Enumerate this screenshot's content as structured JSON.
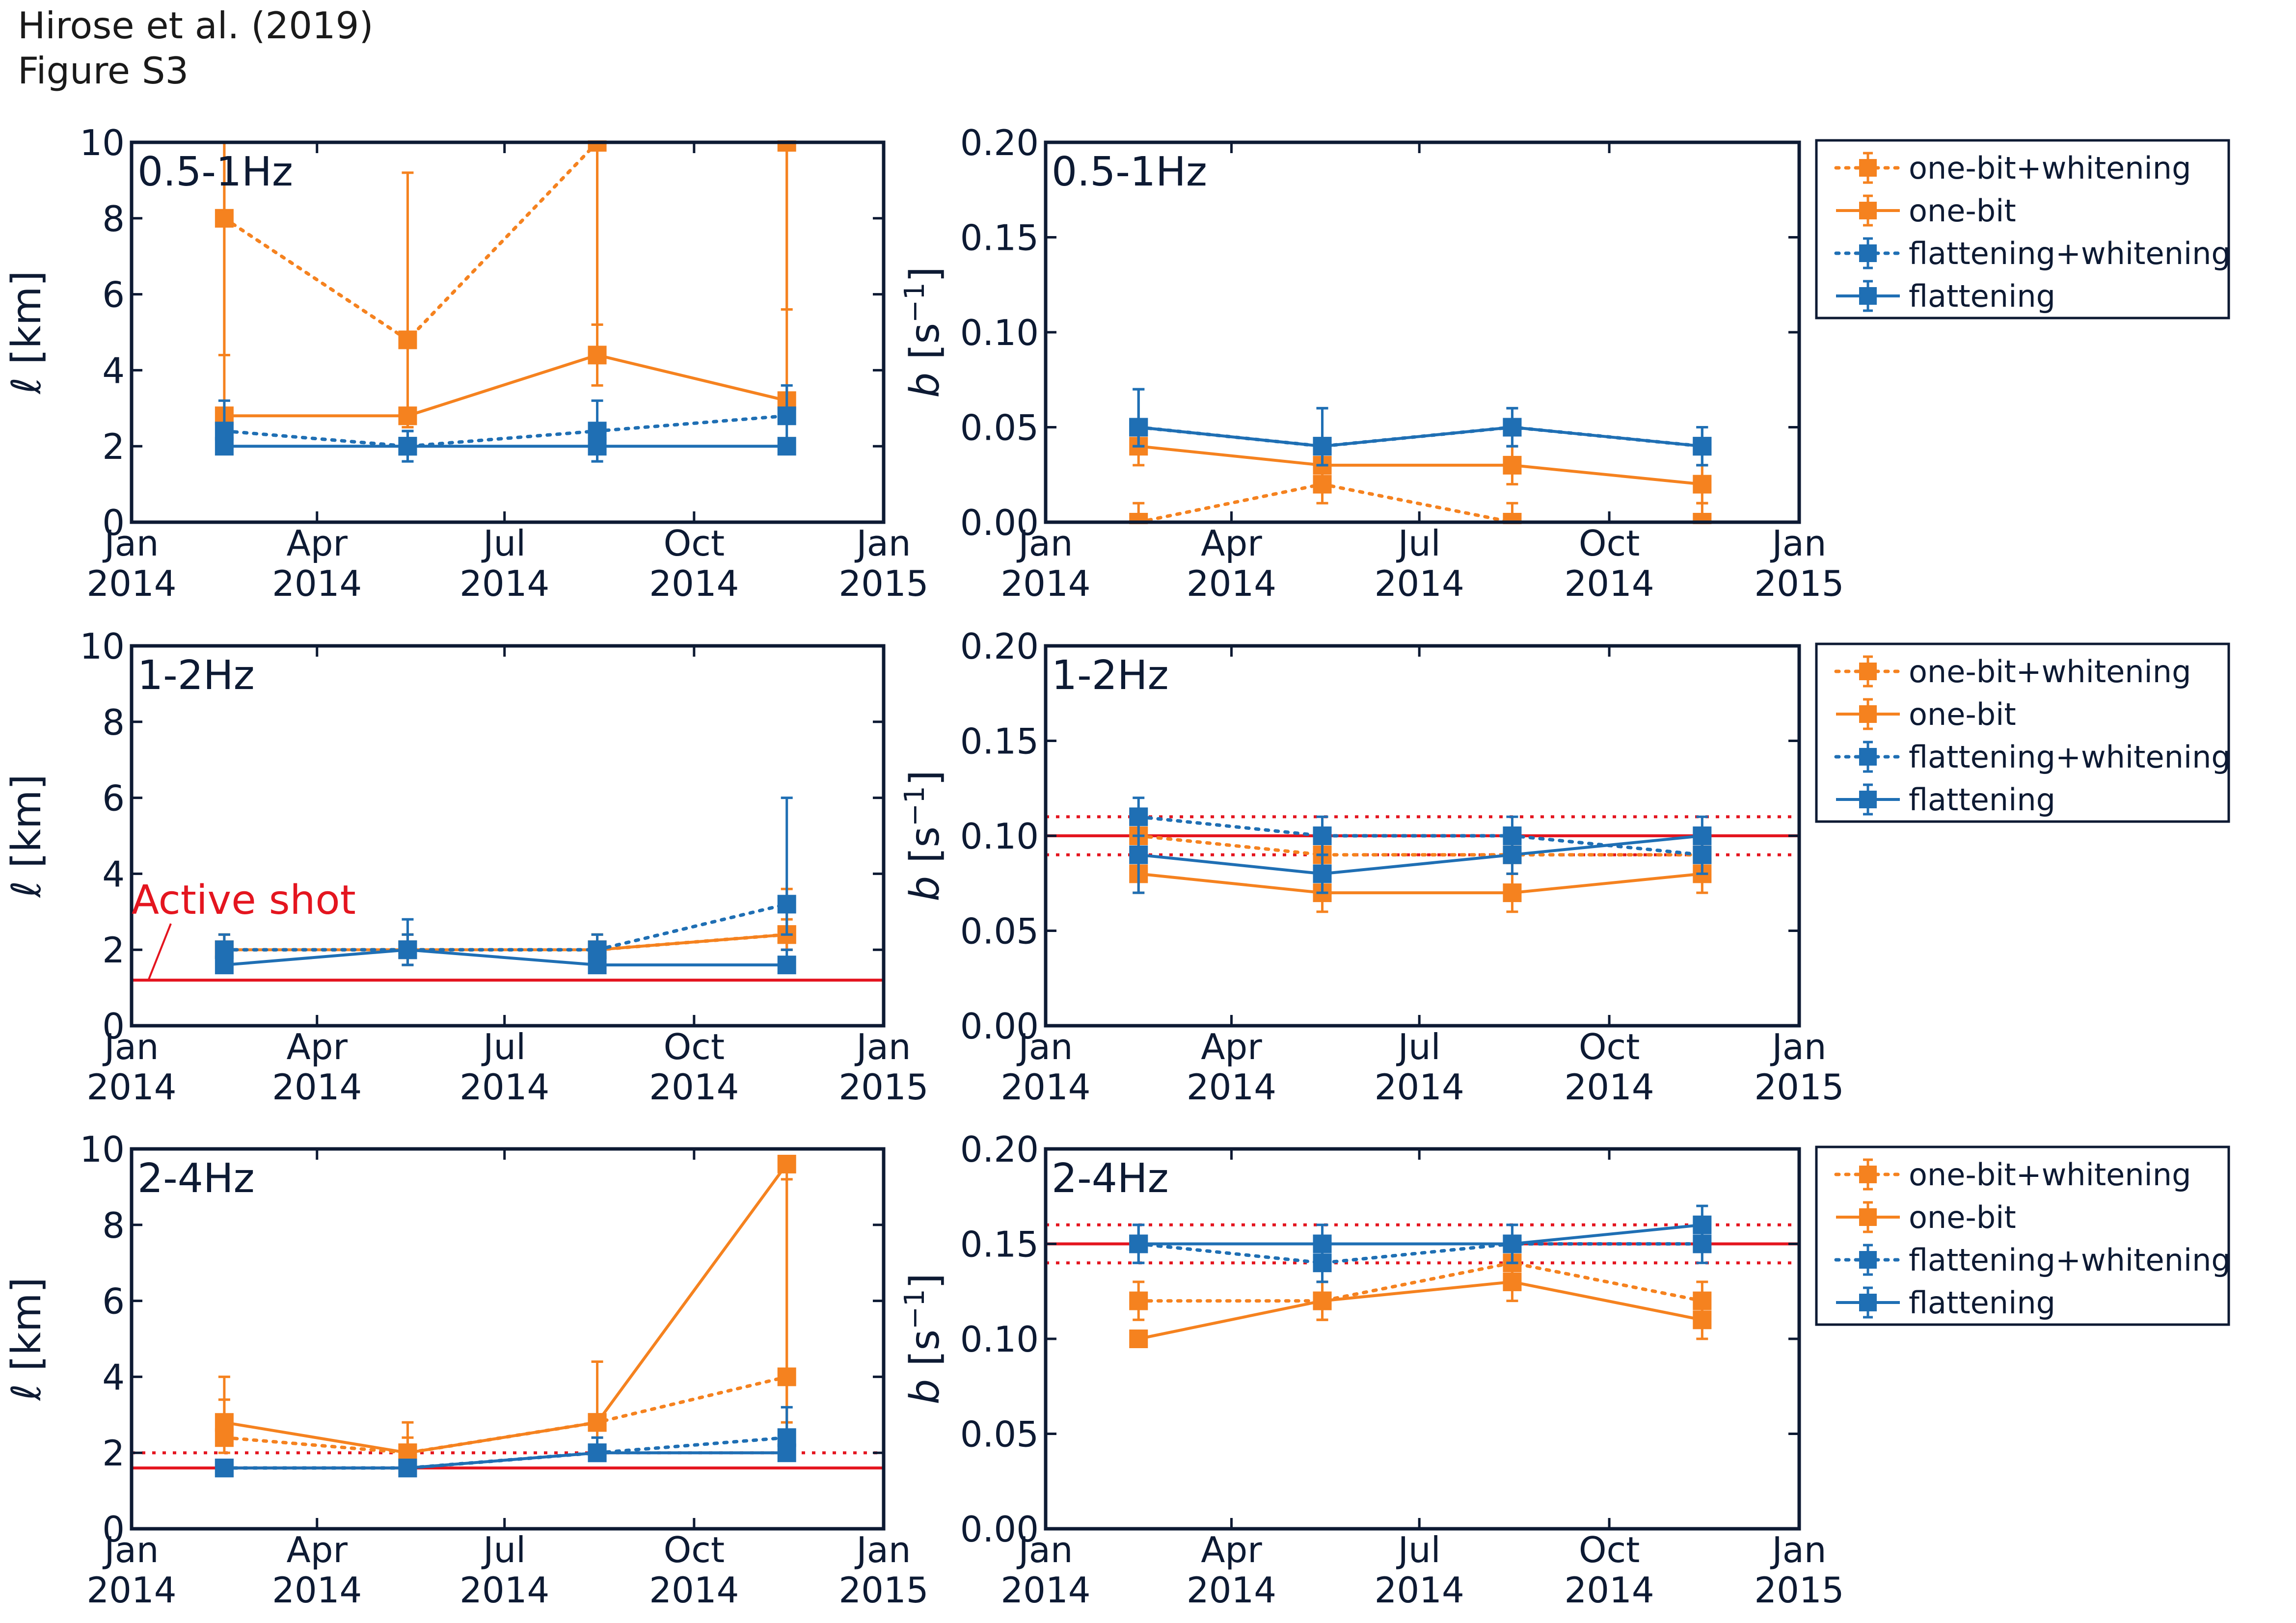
{
  "header": {
    "line1": "Hirose et al. (2019)",
    "line2": "Figure S3"
  },
  "colors": {
    "orange": "#F5821F",
    "blue": "#1F6FB4",
    "red": "#E4151F",
    "frame": "#0d1a33",
    "text": "#0d1a33"
  },
  "chart_data": [
    {
      "type": "line",
      "panel_label": "0.5-1Hz",
      "ylabel": "ℓ [km]",
      "ylim": [
        0,
        10
      ],
      "yticks": [
        "0",
        "2",
        "4",
        "6",
        "8",
        "10"
      ],
      "xticks": [
        [
          "Jan",
          "2014"
        ],
        [
          "Apr",
          "2014"
        ],
        [
          "Jul",
          "2014"
        ],
        [
          "Oct",
          "2014"
        ],
        [
          "Jan",
          "2015"
        ]
      ],
      "x": [
        "2014-02-15",
        "2014-05-15",
        "2014-08-15",
        "2014-11-15"
      ],
      "series": [
        {
          "name": "one-bit+whitening",
          "style": "dotted",
          "color": "orange",
          "values": [
            8.0,
            4.8,
            10.0,
            10.0
          ],
          "err_lo": [
            4.4,
            2.5,
            5.2,
            5.6
          ],
          "err_hi": [
            10.0,
            9.2,
            10.0,
            10.0
          ]
        },
        {
          "name": "one-bit",
          "style": "solid",
          "color": "orange",
          "values": [
            2.8,
            2.8,
            4.4,
            3.2
          ],
          "err_lo": [
            2.5,
            2.5,
            3.6,
            2.6
          ],
          "err_hi": [
            10.0,
            3.0,
            10.0,
            10.0
          ]
        },
        {
          "name": "flattening+whitening",
          "style": "dotted",
          "color": "blue",
          "values": [
            2.4,
            2.0,
            2.4,
            2.8
          ],
          "err_lo": [
            1.8,
            1.6,
            1.6,
            2.2
          ],
          "err_hi": [
            3.2,
            2.4,
            3.2,
            3.6
          ]
        },
        {
          "name": "flattening",
          "style": "solid",
          "color": "blue",
          "values": [
            2.0,
            2.0,
            2.0,
            2.0
          ],
          "err_lo": [
            1.8,
            1.6,
            1.6,
            1.8
          ],
          "err_hi": [
            2.2,
            2.4,
            2.4,
            2.2
          ]
        }
      ]
    },
    {
      "type": "line",
      "panel_label": "0.5-1Hz",
      "ylabel": "b [s⁻¹]",
      "ylim": [
        0,
        0.2
      ],
      "yticks": [
        "0.00",
        "0.05",
        "0.10",
        "0.15",
        "0.20"
      ],
      "xticks": [
        [
          "Jan",
          "2014"
        ],
        [
          "Apr",
          "2014"
        ],
        [
          "Jul",
          "2014"
        ],
        [
          "Oct",
          "2014"
        ],
        [
          "Jan",
          "2015"
        ]
      ],
      "x": [
        "2014-02-15",
        "2014-05-15",
        "2014-08-15",
        "2014-11-15"
      ],
      "legend": "outside-right",
      "series": [
        {
          "name": "one-bit+whitening",
          "style": "dotted",
          "color": "orange",
          "values": [
            0.0,
            0.02,
            0.0,
            0.0
          ],
          "err_lo": [
            0.0,
            0.01,
            0.0,
            0.0
          ],
          "err_hi": [
            0.01,
            0.03,
            0.01,
            0.01
          ]
        },
        {
          "name": "one-bit",
          "style": "solid",
          "color": "orange",
          "values": [
            0.04,
            0.03,
            0.03,
            0.02
          ],
          "err_lo": [
            0.03,
            0.02,
            0.02,
            0.01
          ],
          "err_hi": [
            0.05,
            0.04,
            0.04,
            0.03
          ]
        },
        {
          "name": "flattening+whitening",
          "style": "dotted",
          "color": "blue",
          "values": [
            0.05,
            0.04,
            0.05,
            0.04
          ],
          "err_lo": [
            0.04,
            0.03,
            0.04,
            0.03
          ],
          "err_hi": [
            0.07,
            0.06,
            0.06,
            0.05
          ]
        },
        {
          "name": "flattening",
          "style": "solid",
          "color": "blue",
          "values": [
            0.05,
            0.04,
            0.05,
            0.04
          ],
          "err_lo": [
            0.04,
            0.03,
            0.04,
            0.03
          ],
          "err_hi": [
            0.07,
            0.06,
            0.06,
            0.05
          ]
        }
      ]
    },
    {
      "type": "line",
      "panel_label": "1-2Hz",
      "ylabel": "ℓ [km]",
      "ylim": [
        0,
        10
      ],
      "yticks": [
        "0",
        "2",
        "4",
        "6",
        "8",
        "10"
      ],
      "xticks": [
        [
          "Jan",
          "2014"
        ],
        [
          "Apr",
          "2014"
        ],
        [
          "Jul",
          "2014"
        ],
        [
          "Oct",
          "2014"
        ],
        [
          "Jan",
          "2015"
        ]
      ],
      "x": [
        "2014-02-15",
        "2014-05-15",
        "2014-08-15",
        "2014-11-15"
      ],
      "annotation": "Active shot",
      "reference": {
        "value": 1.2,
        "lower": null,
        "upper": null
      },
      "series": [
        {
          "name": "one-bit+whitening",
          "style": "dotted",
          "color": "orange",
          "values": [
            2.0,
            2.0,
            2.0,
            2.4
          ],
          "err_lo": [
            1.6,
            1.6,
            1.6,
            2.0
          ],
          "err_hi": [
            2.4,
            2.4,
            2.4,
            3.6
          ]
        },
        {
          "name": "one-bit",
          "style": "solid",
          "color": "orange",
          "values": [
            2.0,
            2.0,
            2.0,
            2.4
          ],
          "err_lo": [
            1.6,
            1.6,
            1.6,
            2.0
          ],
          "err_hi": [
            2.4,
            2.4,
            2.4,
            2.8
          ]
        },
        {
          "name": "flattening+whitening",
          "style": "dotted",
          "color": "blue",
          "values": [
            2.0,
            2.0,
            2.0,
            3.2
          ],
          "err_lo": [
            1.6,
            1.6,
            1.6,
            2.4
          ],
          "err_hi": [
            2.4,
            2.4,
            2.4,
            6.0
          ]
        },
        {
          "name": "flattening",
          "style": "solid",
          "color": "blue",
          "values": [
            1.6,
            2.0,
            1.6,
            1.6
          ],
          "err_lo": [
            1.4,
            1.6,
            1.4,
            1.4
          ],
          "err_hi": [
            2.2,
            2.8,
            2.2,
            2.0
          ]
        }
      ]
    },
    {
      "type": "line",
      "panel_label": "1-2Hz",
      "ylabel": "b [s⁻¹]",
      "ylim": [
        0,
        0.2
      ],
      "yticks": [
        "0.00",
        "0.05",
        "0.10",
        "0.15",
        "0.20"
      ],
      "xticks": [
        [
          "Jan",
          "2014"
        ],
        [
          "Apr",
          "2014"
        ],
        [
          "Jul",
          "2014"
        ],
        [
          "Oct",
          "2014"
        ],
        [
          "Jan",
          "2015"
        ]
      ],
      "x": [
        "2014-02-15",
        "2014-05-15",
        "2014-08-15",
        "2014-11-15"
      ],
      "legend": "outside-right",
      "reference": {
        "value": 0.1,
        "lower": 0.09,
        "upper": 0.11
      },
      "series": [
        {
          "name": "one-bit+whitening",
          "style": "dotted",
          "color": "orange",
          "values": [
            0.1,
            0.09,
            0.09,
            0.09
          ],
          "err_lo": [
            0.09,
            0.08,
            0.08,
            0.08
          ],
          "err_hi": [
            0.11,
            0.1,
            0.1,
            0.1
          ]
        },
        {
          "name": "one-bit",
          "style": "solid",
          "color": "orange",
          "values": [
            0.08,
            0.07,
            0.07,
            0.08
          ],
          "err_lo": [
            0.07,
            0.06,
            0.06,
            0.07
          ],
          "err_hi": [
            0.09,
            0.08,
            0.08,
            0.09
          ]
        },
        {
          "name": "flattening+whitening",
          "style": "dotted",
          "color": "blue",
          "values": [
            0.11,
            0.1,
            0.1,
            0.09
          ],
          "err_lo": [
            0.1,
            0.09,
            0.09,
            0.08
          ],
          "err_hi": [
            0.12,
            0.11,
            0.11,
            0.1
          ]
        },
        {
          "name": "flattening",
          "style": "solid",
          "color": "blue",
          "values": [
            0.09,
            0.08,
            0.09,
            0.1
          ],
          "err_lo": [
            0.07,
            0.07,
            0.08,
            0.09
          ],
          "err_hi": [
            0.1,
            0.09,
            0.1,
            0.11
          ]
        }
      ]
    },
    {
      "type": "line",
      "panel_label": "2-4Hz",
      "ylabel": "ℓ [km]",
      "ylim": [
        0,
        10
      ],
      "yticks": [
        "0",
        "2",
        "4",
        "6",
        "8",
        "10"
      ],
      "xticks": [
        [
          "Jan",
          "2014"
        ],
        [
          "Apr",
          "2014"
        ],
        [
          "Jul",
          "2014"
        ],
        [
          "Oct",
          "2014"
        ],
        [
          "Jan",
          "2015"
        ]
      ],
      "x": [
        "2014-02-15",
        "2014-05-15",
        "2014-08-15",
        "2014-11-15"
      ],
      "reference": {
        "value": 1.6,
        "lower": null,
        "upper": 2.0
      },
      "series": [
        {
          "name": "one-bit+whitening",
          "style": "dotted",
          "color": "orange",
          "values": [
            2.4,
            2.0,
            2.8,
            4.0
          ],
          "err_lo": [
            2.0,
            1.6,
            2.4,
            2.8
          ],
          "err_hi": [
            4.0,
            2.4,
            4.4,
            9.2
          ]
        },
        {
          "name": "one-bit",
          "style": "solid",
          "color": "orange",
          "values": [
            2.8,
            2.0,
            2.8,
            9.6
          ],
          "err_lo": [
            2.2,
            1.8,
            2.6,
            2.0
          ],
          "err_hi": [
            3.4,
            2.8,
            3.0,
            9.8
          ]
        },
        {
          "name": "flattening+whitening",
          "style": "dotted",
          "color": "blue",
          "values": [
            1.6,
            1.6,
            2.0,
            2.4
          ],
          "err_lo": [
            1.4,
            1.4,
            1.8,
            2.0
          ],
          "err_hi": [
            1.8,
            1.8,
            2.4,
            3.2
          ]
        },
        {
          "name": "flattening",
          "style": "solid",
          "color": "blue",
          "values": [
            1.6,
            1.6,
            2.0,
            2.0
          ],
          "err_lo": [
            1.4,
            1.4,
            1.8,
            1.8
          ],
          "err_hi": [
            1.8,
            1.8,
            2.2,
            2.4
          ]
        }
      ]
    },
    {
      "type": "line",
      "panel_label": "2-4Hz",
      "ylabel": "b [s⁻¹]",
      "ylim": [
        0,
        0.2
      ],
      "yticks": [
        "0.00",
        "0.05",
        "0.10",
        "0.15",
        "0.20"
      ],
      "xticks": [
        [
          "Jan",
          "2014"
        ],
        [
          "Apr",
          "2014"
        ],
        [
          "Jul",
          "2014"
        ],
        [
          "Oct",
          "2014"
        ],
        [
          "Jan",
          "2015"
        ]
      ],
      "x": [
        "2014-02-15",
        "2014-05-15",
        "2014-08-15",
        "2014-11-15"
      ],
      "legend": "outside-right",
      "reference": {
        "value": 0.15,
        "lower": 0.14,
        "upper": 0.16
      },
      "series": [
        {
          "name": "one-bit+whitening",
          "style": "dotted",
          "color": "orange",
          "values": [
            0.12,
            0.12,
            0.14,
            0.12
          ],
          "err_lo": [
            0.11,
            0.11,
            0.13,
            0.11
          ],
          "err_hi": [
            0.13,
            0.13,
            0.15,
            0.13
          ]
        },
        {
          "name": "one-bit",
          "style": "solid",
          "color": "orange",
          "values": [
            0.1,
            0.12,
            0.13,
            0.11
          ],
          "err_lo": [
            0.1,
            0.11,
            0.12,
            0.1
          ],
          "err_hi": [
            0.1,
            0.13,
            0.14,
            0.12
          ]
        },
        {
          "name": "flattening+whitening",
          "style": "dotted",
          "color": "blue",
          "values": [
            0.15,
            0.14,
            0.15,
            0.15
          ],
          "err_lo": [
            0.14,
            0.13,
            0.14,
            0.14
          ],
          "err_hi": [
            0.16,
            0.15,
            0.16,
            0.16
          ]
        },
        {
          "name": "flattening",
          "style": "solid",
          "color": "blue",
          "values": [
            0.15,
            0.15,
            0.15,
            0.16
          ],
          "err_lo": [
            0.14,
            0.14,
            0.14,
            0.15
          ],
          "err_hi": [
            0.16,
            0.16,
            0.16,
            0.17
          ]
        }
      ]
    }
  ]
}
